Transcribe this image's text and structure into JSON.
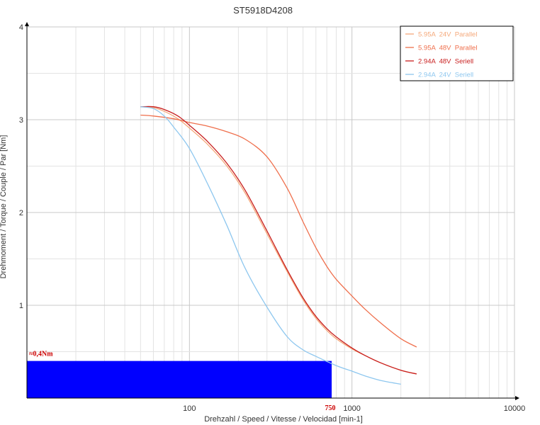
{
  "chart_data": {
    "type": "line",
    "title": "ST5918D4208",
    "xlabel": "Drehzahl / Speed / Vitesse / Velocidad [min-1]",
    "ylabel": "Drehmoment / Torque / Couple / Par [Nm]",
    "x_scale": "log",
    "xlim": [
      10,
      10000
    ],
    "ylim": [
      0,
      4
    ],
    "x_ticks": [
      100,
      1000,
      10000
    ],
    "x_tick_labels": [
      "100",
      "1000",
      "10000"
    ],
    "y_ticks": [
      1,
      2,
      3,
      4
    ],
    "y_tick_labels": [
      "1",
      "2",
      "3",
      "4"
    ],
    "grid": true,
    "legend_position": "top-right",
    "series": [
      {
        "name": "5.95A  24V  Parallel",
        "color": "#f5a87a",
        "x": [
          50,
          60,
          70,
          85,
          100,
          130,
          170,
          220,
          300,
          400,
          500,
          600,
          700,
          800,
          1000,
          1200,
          1500,
          2000,
          2500
        ],
        "y": [
          3.14,
          3.13,
          3.09,
          3.01,
          2.91,
          2.73,
          2.5,
          2.21,
          1.77,
          1.36,
          1.06,
          0.86,
          0.73,
          0.64,
          0.53,
          0.46,
          0.38,
          0.3,
          0.26
        ]
      },
      {
        "name": "5.95A  48V  Parallel",
        "color": "#ef6f4c",
        "x": [
          50,
          60,
          80,
          100,
          130,
          170,
          220,
          300,
          400,
          500,
          600,
          700,
          800,
          1000,
          1200,
          1500,
          2000,
          2500
        ],
        "y": [
          3.05,
          3.04,
          3.01,
          2.97,
          2.93,
          2.87,
          2.79,
          2.6,
          2.26,
          1.9,
          1.62,
          1.42,
          1.28,
          1.1,
          0.96,
          0.81,
          0.64,
          0.55
        ]
      },
      {
        "name": "2.94A  48V  Seriell",
        "color": "#c81e1e",
        "x": [
          50,
          60,
          70,
          85,
          100,
          130,
          170,
          220,
          300,
          400,
          500,
          600,
          700,
          800,
          1000,
          1200,
          1500,
          2000,
          2500
        ],
        "y": [
          3.14,
          3.14,
          3.11,
          3.04,
          2.94,
          2.76,
          2.53,
          2.24,
          1.8,
          1.38,
          1.08,
          0.88,
          0.75,
          0.66,
          0.54,
          0.46,
          0.38,
          0.3,
          0.26
        ]
      },
      {
        "name": "2.94A  24V  Seriell",
        "color": "#8ec7ef",
        "x": [
          50,
          60,
          70,
          80,
          100,
          130,
          170,
          220,
          300,
          400,
          500,
          600,
          800,
          1000,
          1200,
          1500,
          2000
        ],
        "y": [
          3.14,
          3.12,
          3.04,
          2.92,
          2.69,
          2.3,
          1.86,
          1.4,
          0.98,
          0.66,
          0.52,
          0.45,
          0.35,
          0.29,
          0.24,
          0.19,
          0.15
        ]
      }
    ],
    "highlight_region": {
      "label": "≈0,4Nm",
      "torque": 0.4,
      "speed_max": 750,
      "speed_max_label": "750",
      "color": "#0000ff",
      "label_color": "#cc0000"
    }
  }
}
